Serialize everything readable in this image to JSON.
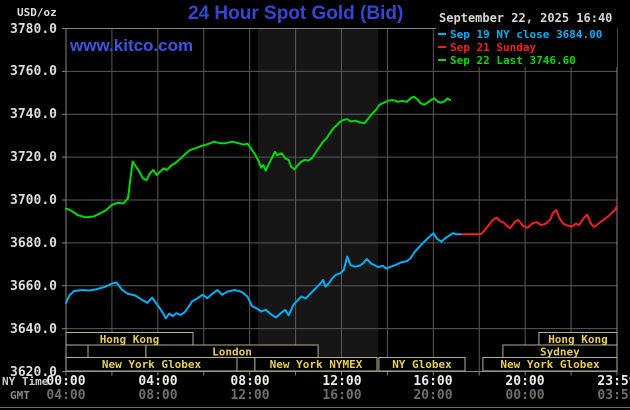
{
  "header": {
    "unit_label": "USD/oz",
    "title": "24 Hour Spot Gold (Bid)",
    "timestamp": "September 22, 2025 16:40",
    "watermark": "www.kitco.com"
  },
  "legend": [
    {
      "label": "Sep 19 NY close 3684.00",
      "color": "#00b0f8"
    },
    {
      "label": "Sep 21 Sunday",
      "color": "#f52020"
    },
    {
      "label": "Sep 22 Last 3746.60",
      "color": "#00dc00"
    }
  ],
  "axes": {
    "x_row_label_ny": "NY Time",
    "x_row_label_gmt": "GMT",
    "y_ticks": [
      "3780.0",
      "3760.0",
      "3740.0",
      "3720.0",
      "3700.0",
      "3680.0",
      "3660.0",
      "3640.0",
      "3620.0"
    ],
    "ny_ticks": [
      "00:00",
      "04:00",
      "08:00",
      "12:00",
      "16:00",
      "20:00",
      "23:59"
    ],
    "gmt_ticks": [
      "04:00",
      "08:00",
      "12:00",
      "16:00",
      "20:00",
      "00:00",
      "03:59"
    ]
  },
  "colors": {
    "background": "#000000",
    "band": "#161616",
    "grid": "#5a5a5a",
    "border": "#848484",
    "axis_text": "#dedede",
    "gmt_text": "#70706a",
    "session_border": "#b2b286",
    "session_text": "#e8ce52",
    "title_blue": "#3546d2",
    "watermark_blue": "#3c55e0"
  },
  "sessions": {
    "rows": [
      {
        "boxes": [
          {
            "label": "Hong Kong",
            "t1": 0,
            "t2": 5.53
          },
          {
            "label": "Hong Kong",
            "t1": 20.6,
            "t2": 24
          }
        ]
      },
      {
        "boxes": [
          {
            "label": "",
            "t1": 0,
            "t2": 0.96
          },
          {
            "label": "",
            "t1": 0.96,
            "t2": 3.48
          },
          {
            "label": "London",
            "t1": 3.48,
            "t2": 10.98
          },
          {
            "label": "Sydney",
            "t1": 19.03,
            "t2": 24
          }
        ]
      },
      {
        "boxes": [
          {
            "label": "New York Globex",
            "t1": 0,
            "t2": 7.45
          },
          {
            "label": "",
            "t1": 7.45,
            "t2": 8.23
          },
          {
            "label": "New York NYMEX",
            "t1": 8.23,
            "t2": 13.55
          },
          {
            "label": "NY Globex",
            "t1": 13.63,
            "t2": 17.38
          },
          {
            "label": "New York Globex",
            "t1": 18.16,
            "t2": 24
          }
        ]
      }
    ]
  },
  "chart_data": {
    "type": "line",
    "title": "24 Hour Spot Gold (Bid)",
    "xlabel": "NY Time (hours, 00:00-23:59)",
    "ylabel": "USD/oz",
    "xlim": [
      0,
      24
    ],
    "ylim": [
      3620,
      3780
    ],
    "y_tick_step": 20,
    "grid": true,
    "legend_position": "top-right",
    "band": {
      "name": "New York NYMEX session",
      "t1": 8.36,
      "t2": 13.59
    },
    "series": [
      {
        "id": "sep19",
        "name": "Sep 19 NY close 3684.00",
        "color": "#00b0f8",
        "close": 3684.0,
        "points": [
          [
            0,
            3652
          ],
          [
            0.15,
            3655.5
          ],
          [
            0.35,
            3657.5
          ],
          [
            0.7,
            3658
          ],
          [
            1.0,
            3657.8
          ],
          [
            1.3,
            3658.3
          ],
          [
            1.7,
            3659.5
          ],
          [
            2.05,
            3661.2
          ],
          [
            2.2,
            3661.5
          ],
          [
            2.45,
            3658
          ],
          [
            2.7,
            3656.2
          ],
          [
            3.0,
            3655.5
          ],
          [
            3.3,
            3653.5
          ],
          [
            3.55,
            3652
          ],
          [
            3.75,
            3654.5
          ],
          [
            3.95,
            3651.5
          ],
          [
            4.15,
            3648.5
          ],
          [
            4.35,
            3644.8
          ],
          [
            4.5,
            3647
          ],
          [
            4.65,
            3645.8
          ],
          [
            4.8,
            3647.2
          ],
          [
            5.0,
            3646.4
          ],
          [
            5.2,
            3648
          ],
          [
            5.5,
            3652.8
          ],
          [
            5.75,
            3654.3
          ],
          [
            5.95,
            3655.8
          ],
          [
            6.15,
            3654.2
          ],
          [
            6.4,
            3656.5
          ],
          [
            6.6,
            3658
          ],
          [
            6.8,
            3655.8
          ],
          [
            7.05,
            3657.3
          ],
          [
            7.35,
            3658
          ],
          [
            7.65,
            3657.2
          ],
          [
            7.9,
            3655
          ],
          [
            8.1,
            3650.5
          ],
          [
            8.3,
            3649.5
          ],
          [
            8.5,
            3648
          ],
          [
            8.7,
            3648.8
          ],
          [
            8.95,
            3646.5
          ],
          [
            9.15,
            3645.2
          ],
          [
            9.4,
            3647.6
          ],
          [
            9.55,
            3648.7
          ],
          [
            9.7,
            3646.2
          ],
          [
            9.9,
            3651
          ],
          [
            10.1,
            3653.3
          ],
          [
            10.25,
            3655
          ],
          [
            10.45,
            3654.1
          ],
          [
            10.65,
            3656.4
          ],
          [
            10.8,
            3658
          ],
          [
            10.95,
            3659.6
          ],
          [
            11.1,
            3661.3
          ],
          [
            11.2,
            3662.7
          ],
          [
            11.3,
            3659.6
          ],
          [
            11.45,
            3661.2
          ],
          [
            11.6,
            3663.5
          ],
          [
            11.75,
            3665.1
          ],
          [
            11.95,
            3665.8
          ],
          [
            12.1,
            3667.4
          ],
          [
            12.25,
            3673.6
          ],
          [
            12.4,
            3669.6
          ],
          [
            12.6,
            3668.9
          ],
          [
            12.8,
            3669.4
          ],
          [
            12.95,
            3670.5
          ],
          [
            13.1,
            3672.5
          ],
          [
            13.3,
            3670.3
          ],
          [
            13.45,
            3669.6
          ],
          [
            13.6,
            3668.7
          ],
          [
            13.8,
            3669.3
          ],
          [
            13.95,
            3668
          ],
          [
            14.15,
            3668.9
          ],
          [
            14.4,
            3669.9
          ],
          [
            14.6,
            3670.9
          ],
          [
            14.85,
            3671.5
          ],
          [
            15.0,
            3672.7
          ],
          [
            15.2,
            3676
          ],
          [
            15.45,
            3678.8
          ],
          [
            15.65,
            3681
          ],
          [
            15.85,
            3683
          ],
          [
            16.0,
            3684.5
          ],
          [
            16.15,
            3682
          ],
          [
            16.35,
            3680.6
          ],
          [
            16.5,
            3682
          ],
          [
            16.7,
            3683.5
          ],
          [
            16.85,
            3684.5
          ],
          [
            17.0,
            3684
          ],
          [
            17.25,
            3684
          ]
        ]
      },
      {
        "id": "sep21",
        "name": "Sep 21 Sunday",
        "color": "#f52020",
        "points": [
          [
            17.25,
            3684
          ],
          [
            17.6,
            3684
          ],
          [
            17.9,
            3684
          ],
          [
            18.1,
            3684.3
          ],
          [
            18.25,
            3686
          ],
          [
            18.45,
            3688.8
          ],
          [
            18.6,
            3690.7
          ],
          [
            18.75,
            3691.8
          ],
          [
            18.9,
            3690.2
          ],
          [
            19.05,
            3689.6
          ],
          [
            19.25,
            3687.6
          ],
          [
            19.35,
            3686.9
          ],
          [
            19.55,
            3689.8
          ],
          [
            19.7,
            3690.7
          ],
          [
            19.9,
            3688
          ],
          [
            20.1,
            3687
          ],
          [
            20.3,
            3689
          ],
          [
            20.5,
            3689.7
          ],
          [
            20.7,
            3688.3
          ],
          [
            20.9,
            3689
          ],
          [
            21.1,
            3691
          ],
          [
            21.2,
            3693.8
          ],
          [
            21.35,
            3695.3
          ],
          [
            21.5,
            3691.5
          ],
          [
            21.65,
            3689
          ],
          [
            21.85,
            3688
          ],
          [
            22.05,
            3687.6
          ],
          [
            22.2,
            3689
          ],
          [
            22.35,
            3688.3
          ],
          [
            22.55,
            3691.5
          ],
          [
            22.7,
            3693.2
          ],
          [
            22.85,
            3689.2
          ],
          [
            23.0,
            3687.4
          ],
          [
            23.2,
            3689
          ],
          [
            23.4,
            3690.7
          ],
          [
            23.6,
            3692.2
          ],
          [
            23.75,
            3693.8
          ],
          [
            23.9,
            3695.3
          ],
          [
            24.0,
            3697
          ]
        ]
      },
      {
        "id": "sep22",
        "name": "Sep 22 Last 3746.60",
        "color": "#00dc00",
        "last": 3746.6,
        "points": [
          [
            0,
            3696
          ],
          [
            0.2,
            3695.2
          ],
          [
            0.5,
            3693
          ],
          [
            0.85,
            3691.9
          ],
          [
            1.2,
            3692.3
          ],
          [
            1.5,
            3693.8
          ],
          [
            1.75,
            3695.3
          ],
          [
            2.0,
            3697.7
          ],
          [
            2.25,
            3698.7
          ],
          [
            2.5,
            3698.4
          ],
          [
            2.7,
            3700.8
          ],
          [
            2.8,
            3709.3
          ],
          [
            2.9,
            3717.9
          ],
          [
            3.05,
            3715.6
          ],
          [
            3.2,
            3713.2
          ],
          [
            3.35,
            3710.1
          ],
          [
            3.5,
            3709.2
          ],
          [
            3.65,
            3712.4
          ],
          [
            3.8,
            3714
          ],
          [
            3.95,
            3711.6
          ],
          [
            4.1,
            3713.2
          ],
          [
            4.25,
            3714.8
          ],
          [
            4.4,
            3714
          ],
          [
            4.6,
            3716.3
          ],
          [
            4.75,
            3717.1
          ],
          [
            5.0,
            3719.4
          ],
          [
            5.2,
            3721.5
          ],
          [
            5.4,
            3723.3
          ],
          [
            5.65,
            3724.1
          ],
          [
            5.9,
            3725.2
          ],
          [
            6.2,
            3726.1
          ],
          [
            6.45,
            3727.2
          ],
          [
            6.7,
            3726.5
          ],
          [
            6.95,
            3726.5
          ],
          [
            7.25,
            3727.2
          ],
          [
            7.5,
            3726.5
          ],
          [
            7.75,
            3725.8
          ],
          [
            7.9,
            3726.3
          ],
          [
            8.0,
            3724.9
          ],
          [
            8.25,
            3721
          ],
          [
            8.4,
            3717.9
          ],
          [
            8.5,
            3715.1
          ],
          [
            8.6,
            3716.3
          ],
          [
            8.7,
            3713.7
          ],
          [
            8.85,
            3717.1
          ],
          [
            9.0,
            3720.2
          ],
          [
            9.1,
            3722.5
          ],
          [
            9.2,
            3721
          ],
          [
            9.4,
            3721.8
          ],
          [
            9.55,
            3719.4
          ],
          [
            9.7,
            3718.7
          ],
          [
            9.8,
            3715.6
          ],
          [
            9.95,
            3714.3
          ],
          [
            10.1,
            3716.3
          ],
          [
            10.25,
            3717.9
          ],
          [
            10.4,
            3718.7
          ],
          [
            10.55,
            3718.4
          ],
          [
            10.7,
            3719.4
          ],
          [
            10.8,
            3721
          ],
          [
            10.95,
            3723.3
          ],
          [
            11.1,
            3725.6
          ],
          [
            11.2,
            3727.2
          ],
          [
            11.35,
            3728.8
          ],
          [
            11.5,
            3731.2
          ],
          [
            11.65,
            3733.5
          ],
          [
            11.8,
            3735
          ],
          [
            11.95,
            3736.6
          ],
          [
            12.1,
            3737.4
          ],
          [
            12.25,
            3737.7
          ],
          [
            12.4,
            3736.6
          ],
          [
            12.6,
            3737
          ],
          [
            12.8,
            3736.2
          ],
          [
            13.0,
            3735.8
          ],
          [
            13.2,
            3738.5
          ],
          [
            13.35,
            3740.4
          ],
          [
            13.5,
            3742
          ],
          [
            13.65,
            3744.4
          ],
          [
            13.85,
            3745.4
          ],
          [
            14.05,
            3746.4
          ],
          [
            14.25,
            3746.6
          ],
          [
            14.45,
            3745.8
          ],
          [
            14.65,
            3746.2
          ],
          [
            14.85,
            3745.8
          ],
          [
            15.0,
            3747.4
          ],
          [
            15.15,
            3748.2
          ],
          [
            15.3,
            3747
          ],
          [
            15.45,
            3745.1
          ],
          [
            15.6,
            3744.4
          ],
          [
            15.75,
            3745.4
          ],
          [
            15.9,
            3746.6
          ],
          [
            16.05,
            3747.4
          ],
          [
            16.2,
            3745.8
          ],
          [
            16.35,
            3745.4
          ],
          [
            16.5,
            3746.2
          ],
          [
            16.62,
            3747.4
          ],
          [
            16.73,
            3746.6
          ]
        ]
      }
    ]
  }
}
